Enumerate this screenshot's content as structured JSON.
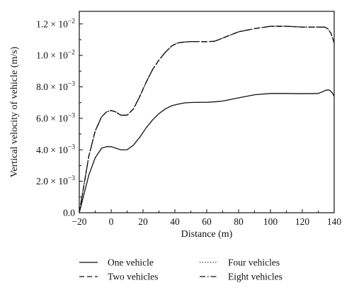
{
  "chart_data": {
    "type": "line",
    "xlabel": "Distance (m)",
    "ylabel": "Vertical velocity of vehicle (m/s)",
    "xlim": [
      -20,
      140
    ],
    "ylim": [
      0,
      0.0128
    ],
    "xticks": [
      -20,
      0,
      20,
      40,
      60,
      80,
      100,
      120,
      140
    ],
    "yticks": [
      {
        "value": 0,
        "mantissa": "0.0",
        "exp": ""
      },
      {
        "value": 0.002,
        "mantissa": "2.0 × 10",
        "exp": "−3"
      },
      {
        "value": 0.004,
        "mantissa": "4.0 × 10",
        "exp": "−3"
      },
      {
        "value": 0.006,
        "mantissa": "6.0 × 10",
        "exp": "−3"
      },
      {
        "value": 0.008,
        "mantissa": "8.0 × 10",
        "exp": "−3"
      },
      {
        "value": 0.01,
        "mantissa": "1.0 × 10",
        "exp": "−2"
      },
      {
        "value": 0.012,
        "mantissa": "1.2 × 10",
        "exp": "−2"
      }
    ],
    "legend_position": "bottom",
    "series": [
      {
        "name": "One vehicle",
        "dash": "solid",
        "x": [
          -20,
          -17,
          -14,
          -10,
          -6,
          -3,
          0,
          3,
          6,
          10,
          14,
          18,
          22,
          26,
          30,
          34,
          38,
          42,
          46,
          50,
          55,
          60,
          65,
          70,
          80,
          90,
          100,
          110,
          120,
          130,
          133,
          135,
          137,
          139,
          140
        ],
        "y": [
          0.0,
          0.0012,
          0.0024,
          0.0035,
          0.0041,
          0.0042,
          0.0042,
          0.0041,
          0.004,
          0.004,
          0.0043,
          0.0048,
          0.0054,
          0.0059,
          0.0063,
          0.0066,
          0.0068,
          0.0069,
          0.00698,
          0.00701,
          0.00702,
          0.00702,
          0.00705,
          0.0071,
          0.0073,
          0.0075,
          0.00758,
          0.00758,
          0.00757,
          0.00758,
          0.0077,
          0.0078,
          0.0078,
          0.0076,
          0.0074
        ]
      },
      {
        "name": "Two vehicles",
        "dash": "dashed",
        "x": [
          -20,
          -17,
          -14,
          -10,
          -6,
          -3,
          0,
          3,
          6,
          10,
          14,
          18,
          22,
          26,
          30,
          34,
          38,
          42,
          46,
          50,
          55,
          60,
          65,
          70,
          75,
          80,
          90,
          100,
          110,
          120,
          130,
          134,
          136,
          138,
          140
        ],
        "y": [
          0.0,
          0.0018,
          0.0036,
          0.0052,
          0.0061,
          0.0064,
          0.0065,
          0.0064,
          0.0062,
          0.0062,
          0.0066,
          0.0074,
          0.0083,
          0.0091,
          0.0097,
          0.0102,
          0.0106,
          0.0108,
          0.01085,
          0.01088,
          0.01088,
          0.01087,
          0.0109,
          0.0111,
          0.0113,
          0.0115,
          0.0117,
          0.01185,
          0.01185,
          0.0118,
          0.0118,
          0.0118,
          0.0117,
          0.0114,
          0.0108
        ]
      },
      {
        "name": "Four vehicles",
        "dash": "dotted",
        "x": [
          -20,
          -17,
          -14,
          -10,
          -6,
          -3,
          0,
          3,
          6,
          10,
          14,
          18,
          22,
          26,
          30,
          34,
          38,
          42,
          46,
          50,
          55,
          60,
          65,
          70,
          75,
          80,
          90,
          100,
          110,
          120,
          130,
          134,
          136,
          138,
          140
        ],
        "y": [
          0.0,
          0.0018,
          0.0036,
          0.0052,
          0.0061,
          0.0064,
          0.0065,
          0.0064,
          0.0062,
          0.0062,
          0.0066,
          0.0074,
          0.0083,
          0.0091,
          0.0097,
          0.0102,
          0.0106,
          0.0108,
          0.01085,
          0.01088,
          0.01088,
          0.01087,
          0.0109,
          0.0111,
          0.0113,
          0.0115,
          0.0117,
          0.01185,
          0.01185,
          0.0118,
          0.0118,
          0.0118,
          0.0117,
          0.0114,
          0.0108
        ]
      },
      {
        "name": "Eight vehicles",
        "dash": "dashdot",
        "x": [
          -20,
          -17,
          -14,
          -10,
          -6,
          -3,
          0,
          3,
          6,
          10,
          14,
          18,
          22,
          26,
          30,
          34,
          38,
          42,
          46,
          50,
          55,
          60,
          65,
          70,
          75,
          80,
          90,
          100,
          110,
          120,
          130,
          134,
          136,
          138,
          140
        ],
        "y": [
          0.0,
          0.0018,
          0.0036,
          0.0052,
          0.0061,
          0.0064,
          0.0065,
          0.0064,
          0.0062,
          0.0062,
          0.0066,
          0.0074,
          0.0083,
          0.0091,
          0.0097,
          0.0102,
          0.0106,
          0.0108,
          0.01085,
          0.01088,
          0.01088,
          0.01087,
          0.0109,
          0.0111,
          0.0113,
          0.0115,
          0.0117,
          0.01185,
          0.01185,
          0.0118,
          0.0118,
          0.0118,
          0.0117,
          0.0114,
          0.0108
        ]
      }
    ]
  }
}
